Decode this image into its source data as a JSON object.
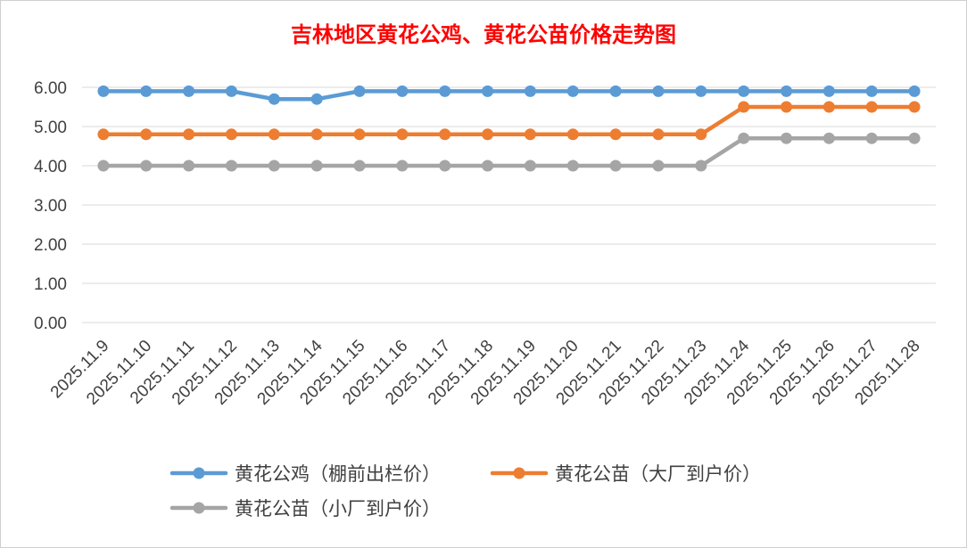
{
  "chart_data": {
    "type": "line",
    "title": "吉林地区黄花公鸡、黄花公苗价格走势图",
    "xlabel": "",
    "ylabel": "",
    "ylim": [
      0,
      6
    ],
    "yticks": [
      "0.00",
      "1.00",
      "2.00",
      "3.00",
      "4.00",
      "5.00",
      "6.00"
    ],
    "grid": true,
    "legend_position": "bottom",
    "categories": [
      "2025.11.9",
      "2025.11.10",
      "2025.11.11",
      "2025.11.12",
      "2025.11.13",
      "2025.11.14",
      "2025.11.15",
      "2025.11.16",
      "2025.11.17",
      "2025.11.18",
      "2025.11.19",
      "2025.11.20",
      "2025.11.21",
      "2025.11.22",
      "2025.11.23",
      "2025.11.24",
      "2025.11.25",
      "2025.11.26",
      "2025.11.27",
      "2025.11.28"
    ],
    "series": [
      {
        "name": "黄花公鸡（棚前出栏价）",
        "color": "#5b9bd5",
        "values": [
          5.9,
          5.9,
          5.9,
          5.9,
          5.7,
          5.7,
          5.9,
          5.9,
          5.9,
          5.9,
          5.9,
          5.9,
          5.9,
          5.9,
          5.9,
          5.9,
          5.9,
          5.9,
          5.9,
          5.9
        ]
      },
      {
        "name": "黄花公苗（大厂到户价）",
        "color": "#ed7d31",
        "values": [
          4.8,
          4.8,
          4.8,
          4.8,
          4.8,
          4.8,
          4.8,
          4.8,
          4.8,
          4.8,
          4.8,
          4.8,
          4.8,
          4.8,
          4.8,
          5.5,
          5.5,
          5.5,
          5.5,
          5.5
        ]
      },
      {
        "name": "黄花公苗（小厂到户价）",
        "color": "#a5a5a5",
        "values": [
          4.0,
          4.0,
          4.0,
          4.0,
          4.0,
          4.0,
          4.0,
          4.0,
          4.0,
          4.0,
          4.0,
          4.0,
          4.0,
          4.0,
          4.0,
          4.7,
          4.7,
          4.7,
          4.7,
          4.7
        ]
      }
    ]
  }
}
